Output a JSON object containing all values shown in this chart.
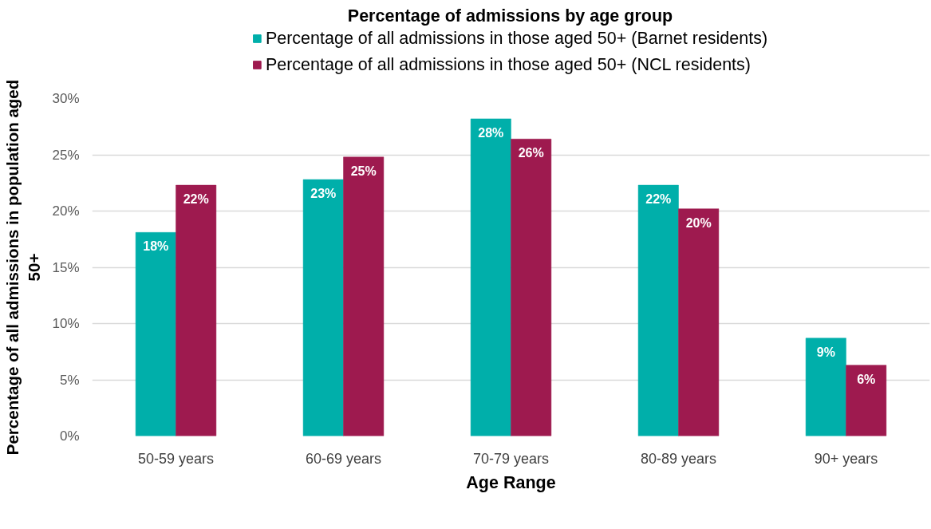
{
  "chart_data": {
    "type": "bar",
    "title": "Percentage of admissions by age group",
    "xlabel": "Age Range",
    "ylabel": "Percentage of all admissions in population aged 50+",
    "categories": [
      "50-59 years",
      "60-69 years",
      "70-79 years",
      "80-89 years",
      "90+ years"
    ],
    "series": [
      {
        "name": "Percentage of all admissions in those aged 50+ (Barnet residents)",
        "color": "#00afaa",
        "values": [
          18.1,
          22.8,
          28.2,
          22.3,
          8.7
        ],
        "value_labels": [
          "18%",
          "23%",
          "28%",
          "22%",
          "9%"
        ]
      },
      {
        "name": "Percentage of all admissions in those aged 50+ (NCL residents)",
        "color": "#9e1a4f",
        "values": [
          22.3,
          24.8,
          26.4,
          20.2,
          6.3
        ],
        "value_labels": [
          "22%",
          "25%",
          "26%",
          "20%",
          "6%"
        ]
      }
    ],
    "ylim": [
      0,
      30
    ],
    "yticks": [
      {
        "value": 0,
        "label": "0%"
      },
      {
        "value": 5,
        "label": "5%"
      },
      {
        "value": 10,
        "label": "10%"
      },
      {
        "value": 15,
        "label": "15%"
      },
      {
        "value": 20,
        "label": "20%"
      },
      {
        "value": 25,
        "label": "25%"
      },
      {
        "value": 30,
        "label": "30%"
      }
    ],
    "grid": "y",
    "legend": "top"
  }
}
